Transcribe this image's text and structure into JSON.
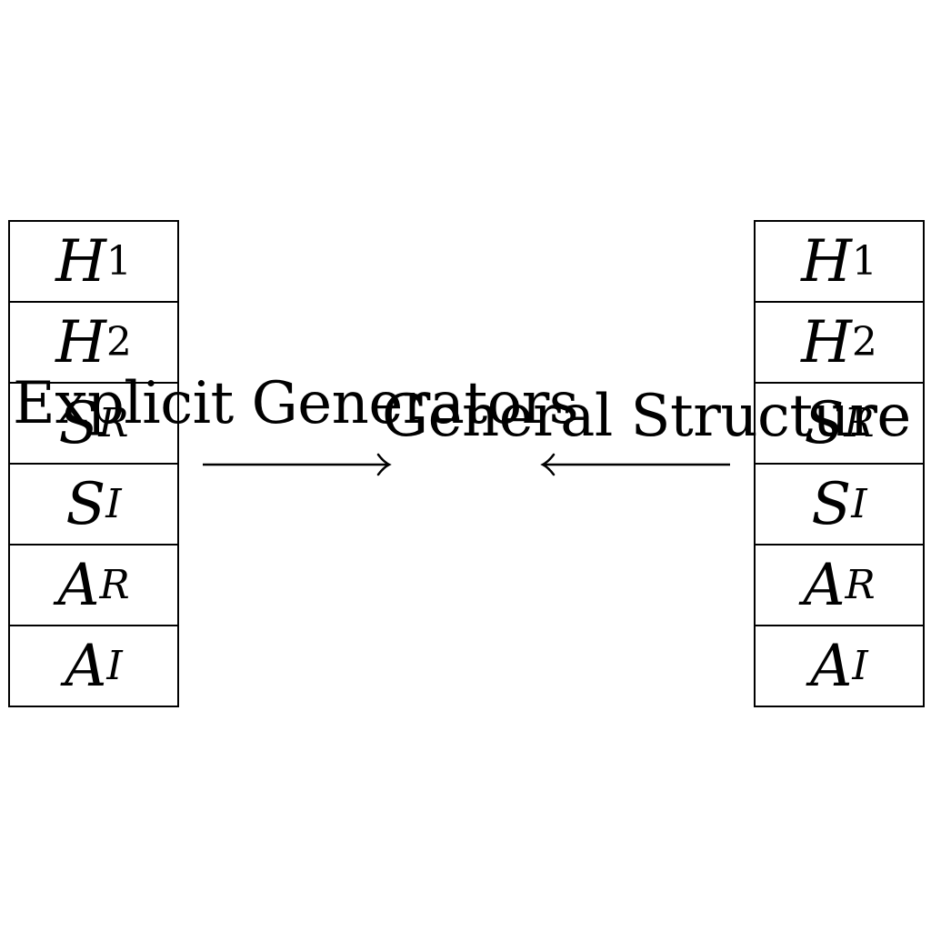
{
  "left_stack": {
    "cells": [
      {
        "symbol": "H",
        "subscript": "1"
      },
      {
        "symbol": "H",
        "subscript": "2"
      },
      {
        "symbol": "S",
        "subscript": "R"
      },
      {
        "symbol": "S",
        "subscript": "I"
      },
      {
        "symbol": "A",
        "subscript": "R"
      },
      {
        "symbol": "A",
        "subscript": "I"
      }
    ]
  },
  "right_stack": {
    "cells": [
      {
        "symbol": "H",
        "subscript": "1"
      },
      {
        "symbol": "H",
        "subscript": "2"
      },
      {
        "symbol": "S",
        "subscript": "R"
      },
      {
        "symbol": "S",
        "subscript": "I"
      },
      {
        "symbol": "A",
        "subscript": "R"
      },
      {
        "symbol": "A",
        "subscript": "I"
      }
    ]
  },
  "labels": {
    "explicit": "Explicit Generators",
    "general": "General Structure"
  },
  "arrows": {
    "color": "#000000"
  }
}
